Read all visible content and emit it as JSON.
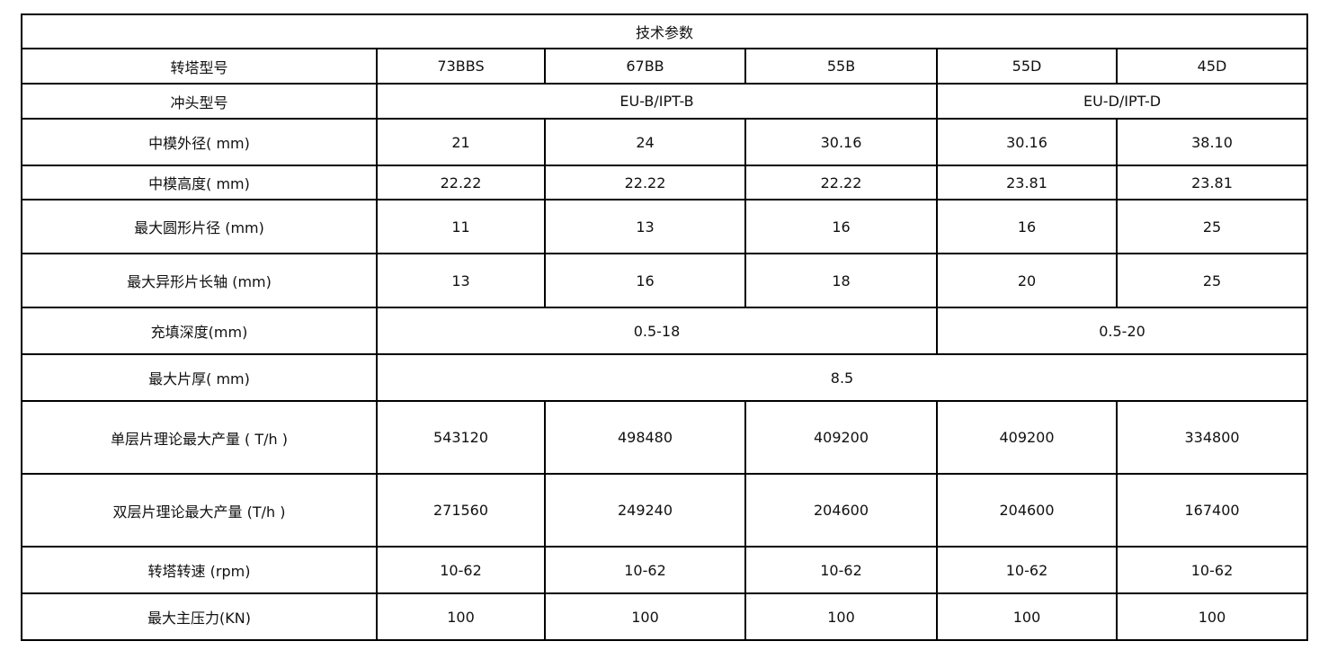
{
  "title": "技术参数",
  "rows": [
    {
      "label": "转塔型号",
      "cells": [
        {
          "text": "73BBS",
          "span": 1
        },
        {
          "text": "67BB",
          "span": 1
        },
        {
          "text": "55B",
          "span": 1
        },
        {
          "text": "55D",
          "span": 1
        },
        {
          "text": "45D",
          "span": 1
        }
      ]
    },
    {
      "label": "冲头型号",
      "cells": [
        {
          "text": "EU-B/IPT-B",
          "span": 3
        },
        {
          "text": "EU-D/IPT-D",
          "span": 2
        }
      ]
    },
    {
      "label": "中模外径( mm)",
      "cells": [
        {
          "text": "21",
          "span": 1
        },
        {
          "text": "24",
          "span": 1
        },
        {
          "text": "30.16",
          "span": 1
        },
        {
          "text": "30.16",
          "span": 1
        },
        {
          "text": "38.10",
          "span": 1
        }
      ]
    },
    {
      "label": "中模高度( mm)",
      "cells": [
        {
          "text": "22.22",
          "span": 1
        },
        {
          "text": "22.22",
          "span": 1
        },
        {
          "text": "22.22",
          "span": 1
        },
        {
          "text": "23.81",
          "span": 1
        },
        {
          "text": "23.81",
          "span": 1
        }
      ]
    },
    {
      "label": "最大圆形片径 (mm)",
      "cells": [
        {
          "text": "11",
          "span": 1
        },
        {
          "text": "13",
          "span": 1
        },
        {
          "text": "16",
          "span": 1
        },
        {
          "text": "16",
          "span": 1
        },
        {
          "text": "25",
          "span": 1
        }
      ]
    },
    {
      "label": "最大异形片长轴 (mm)",
      "cells": [
        {
          "text": "13",
          "span": 1
        },
        {
          "text": "16",
          "span": 1
        },
        {
          "text": "18",
          "span": 1
        },
        {
          "text": "20",
          "span": 1
        },
        {
          "text": "25",
          "span": 1
        }
      ]
    },
    {
      "label": "充填深度(mm)",
      "cells": [
        {
          "text": "0.5-18",
          "span": 3
        },
        {
          "text": "0.5-20",
          "span": 2
        }
      ]
    },
    {
      "label": "最大片厚( mm)",
      "cells": [
        {
          "text": "8.5",
          "span": 5
        }
      ]
    },
    {
      "label": "单层片理论最大产量 ( T/h )",
      "cells": [
        {
          "text": "543120",
          "span": 1
        },
        {
          "text": "498480",
          "span": 1
        },
        {
          "text": "409200",
          "span": 1
        },
        {
          "text": "409200",
          "span": 1
        },
        {
          "text": "334800",
          "span": 1
        }
      ]
    },
    {
      "label": "双层片理论最大产量 (T/h )",
      "cells": [
        {
          "text": "271560",
          "span": 1
        },
        {
          "text": "249240",
          "span": 1
        },
        {
          "text": "204600",
          "span": 1
        },
        {
          "text": "204600",
          "span": 1
        },
        {
          "text": "167400",
          "span": 1
        }
      ]
    },
    {
      "label": "转塔转速 (rpm)",
      "cells": [
        {
          "text": "10-62",
          "span": 1
        },
        {
          "text": "10-62",
          "span": 1
        },
        {
          "text": "10-62",
          "span": 1
        },
        {
          "text": "10-62",
          "span": 1
        },
        {
          "text": "10-62",
          "span": 1
        }
      ]
    },
    {
      "label": "最大主压力(KN)",
      "cells": [
        {
          "text": "100",
          "span": 1
        },
        {
          "text": "100",
          "span": 1
        },
        {
          "text": "100",
          "span": 1
        },
        {
          "text": "100",
          "span": 1
        },
        {
          "text": "100",
          "span": 1
        }
      ]
    }
  ]
}
